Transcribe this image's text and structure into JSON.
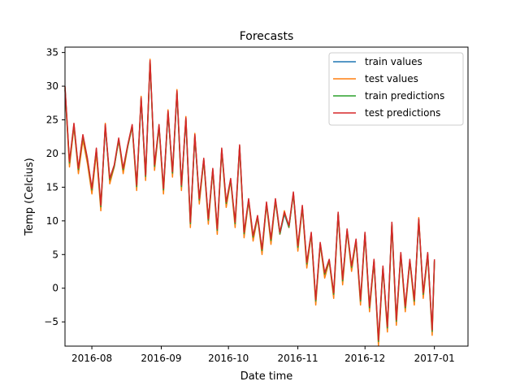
{
  "chart_data": {
    "type": "line",
    "title": "Forecasts",
    "xlabel": "Date time",
    "ylabel": "Temp (Celcius)",
    "xlim": [
      "2016-07-20",
      "2017-01-16"
    ],
    "ylim": [
      -8.6,
      35.8
    ],
    "grid": false,
    "legend_position": "top-right",
    "x_ticks": [
      {
        "date": "2016-08-01",
        "label": "2016-08"
      },
      {
        "date": "2016-09-01",
        "label": "2016-09"
      },
      {
        "date": "2016-10-01",
        "label": "2016-10"
      },
      {
        "date": "2016-11-01",
        "label": "2016-11"
      },
      {
        "date": "2016-12-01",
        "label": "2016-12"
      },
      {
        "date": "2017-01-01",
        "label": "2017-01"
      }
    ],
    "y_ticks": [
      {
        "value": -5,
        "label": "−5"
      },
      {
        "value": 0,
        "label": "0"
      },
      {
        "value": 5,
        "label": "5"
      },
      {
        "value": 10,
        "label": "10"
      },
      {
        "value": 15,
        "label": "15"
      },
      {
        "value": 20,
        "label": "20"
      },
      {
        "value": 25,
        "label": "25"
      },
      {
        "value": 30,
        "label": "30"
      },
      {
        "value": 35,
        "label": "35"
      }
    ],
    "x": [
      "2016-07-20",
      "2016-07-22",
      "2016-07-24",
      "2016-07-26",
      "2016-07-28",
      "2016-07-30",
      "2016-08-01",
      "2016-08-03",
      "2016-08-05",
      "2016-08-07",
      "2016-08-09",
      "2016-08-11",
      "2016-08-13",
      "2016-08-15",
      "2016-08-17",
      "2016-08-19",
      "2016-08-21",
      "2016-08-23",
      "2016-08-25",
      "2016-08-27",
      "2016-08-29",
      "2016-08-31",
      "2016-09-02",
      "2016-09-04",
      "2016-09-06",
      "2016-09-08",
      "2016-09-10",
      "2016-09-12",
      "2016-09-14",
      "2016-09-16",
      "2016-09-18",
      "2016-09-20",
      "2016-09-22",
      "2016-09-24",
      "2016-09-26",
      "2016-09-28",
      "2016-09-30",
      "2016-10-02",
      "2016-10-04",
      "2016-10-06",
      "2016-10-08",
      "2016-10-10",
      "2016-10-12",
      "2016-10-14",
      "2016-10-16",
      "2016-10-18",
      "2016-10-20",
      "2016-10-22",
      "2016-10-24",
      "2016-10-26",
      "2016-10-28",
      "2016-10-30",
      "2016-11-01",
      "2016-11-03",
      "2016-11-05",
      "2016-11-07",
      "2016-11-09",
      "2016-11-11",
      "2016-11-13",
      "2016-11-15",
      "2016-11-17",
      "2016-11-19",
      "2016-11-21",
      "2016-11-23",
      "2016-11-25",
      "2016-11-27",
      "2016-11-29",
      "2016-12-01",
      "2016-12-03",
      "2016-12-05",
      "2016-12-07",
      "2016-12-09",
      "2016-12-11",
      "2016-12-13",
      "2016-12-15",
      "2016-12-17",
      "2016-12-19",
      "2016-12-21",
      "2016-12-23",
      "2016-12-25",
      "2016-12-27",
      "2016-12-29",
      "2016-12-31",
      "2017-01-01"
    ],
    "series": [
      {
        "name": "train values",
        "color": "#1f77b4",
        "y": [
          29.5,
          18.5,
          24.0,
          17.5,
          22.5,
          19.0,
          14.5,
          20.5,
          12.0,
          24.0,
          16.0,
          18.0,
          22.0,
          17.5,
          21.0,
          24.0,
          15.0,
          28.0,
          16.5,
          33.5,
          18.0,
          24.0,
          14.5,
          26.0,
          17.0,
          29.0,
          15.0,
          25.0,
          9.5,
          22.5,
          13.0,
          19.0,
          10.0,
          17.5,
          8.5,
          20.5,
          12.5,
          16.0,
          9.5,
          21.0,
          8.0,
          13.0,
          7.5,
          10.5,
          5.5,
          12.5,
          7.0,
          13.0,
          8.0,
          11.0,
          9.0,
          14.0,
          6.0,
          12.0,
          3.5,
          8.0,
          -2.0,
          6.5,
          2.0,
          4.0,
          -1.0,
          11.0,
          1.0,
          8.5,
          3.0,
          7.0,
          -2.0,
          8.0,
          -3.0,
          4.0,
          -8.0,
          3.0,
          -6.0,
          9.5,
          -5.0,
          5.0,
          -3.0,
          4.0,
          -2.0,
          10.0,
          -1.0,
          5.0,
          -6.5,
          4.0
        ]
      },
      {
        "name": "test values",
        "color": "#ff7f0e",
        "y": [
          29.5,
          18.0,
          24.0,
          17.0,
          22.0,
          18.5,
          14.0,
          20.0,
          11.5,
          24.5,
          15.5,
          18.0,
          22.0,
          17.0,
          21.0,
          24.0,
          14.5,
          28.5,
          16.0,
          34.0,
          17.5,
          24.0,
          14.0,
          26.5,
          16.5,
          29.5,
          14.5,
          25.5,
          9.0,
          23.0,
          12.5,
          19.0,
          9.5,
          17.5,
          8.0,
          20.5,
          12.0,
          16.0,
          9.0,
          21.0,
          7.5,
          13.0,
          7.0,
          10.5,
          5.0,
          12.5,
          6.5,
          13.0,
          8.0,
          11.5,
          9.0,
          14.0,
          5.5,
          12.0,
          3.0,
          8.0,
          -2.5,
          6.5,
          1.5,
          4.0,
          -1.5,
          11.0,
          0.5,
          8.5,
          2.5,
          7.0,
          -2.5,
          8.0,
          -3.5,
          4.0,
          -8.5,
          3.0,
          -6.5,
          9.5,
          -5.5,
          5.0,
          -3.5,
          4.0,
          -2.5,
          10.5,
          -1.5,
          5.0,
          -7.0,
          4.0
        ]
      },
      {
        "name": "train predictions",
        "color": "#2ca02c",
        "y": [
          29.8,
          18.6,
          24.3,
          17.6,
          22.6,
          19.1,
          14.6,
          20.6,
          12.1,
          24.1,
          16.1,
          18.1,
          22.1,
          17.6,
          21.1,
          24.1,
          15.1,
          28.1,
          16.6,
          33.6,
          18.1,
          24.1,
          14.6,
          26.1,
          17.1,
          29.1,
          15.1,
          25.1,
          9.6,
          22.6,
          13.1,
          19.1,
          10.1,
          17.6,
          8.6,
          20.6,
          12.6,
          16.1,
          9.6,
          21.1,
          8.1,
          13.1,
          7.6,
          10.6,
          5.6,
          12.6,
          7.1,
          13.1,
          8.1,
          11.1,
          9.1,
          14.1,
          6.1,
          12.1,
          3.6,
          8.1,
          -1.9,
          6.6,
          2.1,
          4.1,
          -0.9,
          11.1,
          1.1,
          8.6,
          3.1,
          7.1,
          -1.9,
          8.1,
          -2.9,
          4.1,
          -7.9,
          3.1,
          -5.9,
          9.6,
          -4.9,
          5.1,
          -2.9,
          4.1,
          -1.9,
          10.1,
          -0.9,
          5.1,
          -6.4,
          4.1
        ]
      },
      {
        "name": "test predictions",
        "color": "#d62728",
        "y": [
          30.0,
          18.8,
          24.5,
          17.8,
          22.8,
          19.3,
          14.8,
          20.8,
          12.3,
          24.3,
          16.3,
          18.3,
          22.3,
          17.8,
          21.3,
          24.3,
          15.3,
          28.3,
          16.8,
          33.8,
          18.3,
          24.3,
          14.8,
          26.3,
          17.3,
          29.3,
          15.3,
          25.3,
          9.8,
          22.8,
          13.3,
          19.3,
          10.3,
          17.8,
          8.8,
          20.8,
          12.8,
          16.3,
          9.8,
          21.3,
          8.3,
          13.3,
          7.8,
          10.8,
          5.8,
          12.8,
          7.3,
          13.3,
          8.3,
          11.3,
          9.3,
          14.3,
          6.3,
          12.3,
          3.8,
          8.3,
          -1.7,
          6.8,
          2.3,
          4.3,
          -0.7,
          11.3,
          1.3,
          8.8,
          3.3,
          7.3,
          -1.7,
          8.3,
          -2.7,
          4.3,
          -7.7,
          3.3,
          -5.7,
          9.8,
          -4.7,
          5.3,
          -2.7,
          4.3,
          -1.7,
          10.3,
          -0.7,
          5.3,
          -6.2,
          4.3
        ]
      }
    ]
  }
}
